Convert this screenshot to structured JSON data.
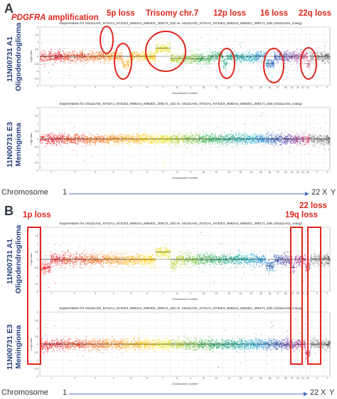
{
  "panels": [
    {
      "letter": "A",
      "annotations": [
        {
          "label": "PDGFRA amplification",
          "italic_part": "PDGFRA",
          "rest": " amplification"
        },
        {
          "label": "5p loss"
        },
        {
          "label": "Trisomy chr.7"
        },
        {
          "label": "12p loss"
        },
        {
          "label": "16 loss"
        },
        {
          "label": "22q loss"
        }
      ],
      "plots": [
        {
          "title": "Segmentation for 191111A01_N731A1_N731E3_N862A2_N862D1_308171_532 vs. 191111A01_N731A1_N731E3_N862A2_N862D1_308171_635 (191111A01_cnavg)",
          "side_label_line1": "11N00731 A1",
          "side_label_line2": "Oligodendroglioma",
          "ylabel": "Log2 ratio",
          "xlabel": "Chromosome number"
        },
        {
          "title": "Segmentation for 191111A02_N731A1_N731E3_N862A2_N862D1_308171_532 vs. 191111A01_N731A1_N731E3_N862A2_N862D1_308171_635 (191111A02_cnavg)",
          "side_label_line1": "11N00731 E3",
          "side_label_line2": "Meningioma",
          "ylabel": "Log2 ratio",
          "xlabel": "Chromosome number"
        }
      ],
      "chromosome_row": {
        "label": "Chromosome",
        "start": "1",
        "end_labels": [
          "22",
          "X",
          "Y"
        ]
      }
    },
    {
      "letter": "B",
      "annotations": [
        {
          "label": "1p loss"
        },
        {
          "label": "22 loss"
        },
        {
          "label": "19q loss"
        }
      ],
      "plots": [
        {
          "title": "Segmentation for 191111A01_N731A1_N731E3_N862A2_N862D1_308171_532 vs. 191111A01_N731A1_N731E3_N862A2_N862D1_308171_635 (191111A01_cnavg)",
          "side_label_line1": "11N00731 A1",
          "side_label_line2": "Oligodendroglioma",
          "ylabel": "Log2 ratio",
          "xlabel": "Chromosome number"
        },
        {
          "title": "Segmentation for 191111A02_N731A1_N731E3_N862A2_N862D1_308171_532 vs. 191111A01_N731A1_N731E3_N862A2_N862D1_308171_635 (191111A02_cnavg)",
          "side_label_line1": "11N00731 E3",
          "side_label_line2": "Meningioma",
          "ylabel": "Log2 ratio",
          "xlabel": "Chromosome number"
        }
      ],
      "chromosome_row": {
        "label": "Chromosome",
        "start": "1",
        "end_labels": [
          "22",
          "X",
          "Y"
        ]
      }
    }
  ],
  "chromosomes": [
    "1",
    "2",
    "3",
    "4",
    "5",
    "6",
    "7",
    "8",
    "9",
    "10",
    "11",
    "12",
    "13",
    "14",
    "15",
    "16",
    "17",
    "18",
    "19",
    "20",
    "21",
    "22",
    "X",
    "Y"
  ],
  "chromosome_colors": [
    "#e8242a",
    "#ee4a24",
    "#f36f21",
    "#f7941d",
    "#fbb117",
    "#ffcf0c",
    "#e6e21a",
    "#b5d334",
    "#7ec242",
    "#3db249",
    "#25a960",
    "#1aa583",
    "#16a6a6",
    "#13a8c8",
    "#1c8fd0",
    "#2a6fc6",
    "#3454b4",
    "#5443a4",
    "#7a3e9d",
    "#9c3b95",
    "#bc3a86",
    "#d93d70",
    "#8a8a8a",
    "#5a5a5a"
  ],
  "y_ticks": [
    "2",
    "1.5",
    "1",
    "0.5",
    "0",
    "-0.5",
    "-1",
    "-1.5",
    "-2"
  ],
  "arrow_color": "#4a76c9",
  "highlight_color": "#e0261d"
}
